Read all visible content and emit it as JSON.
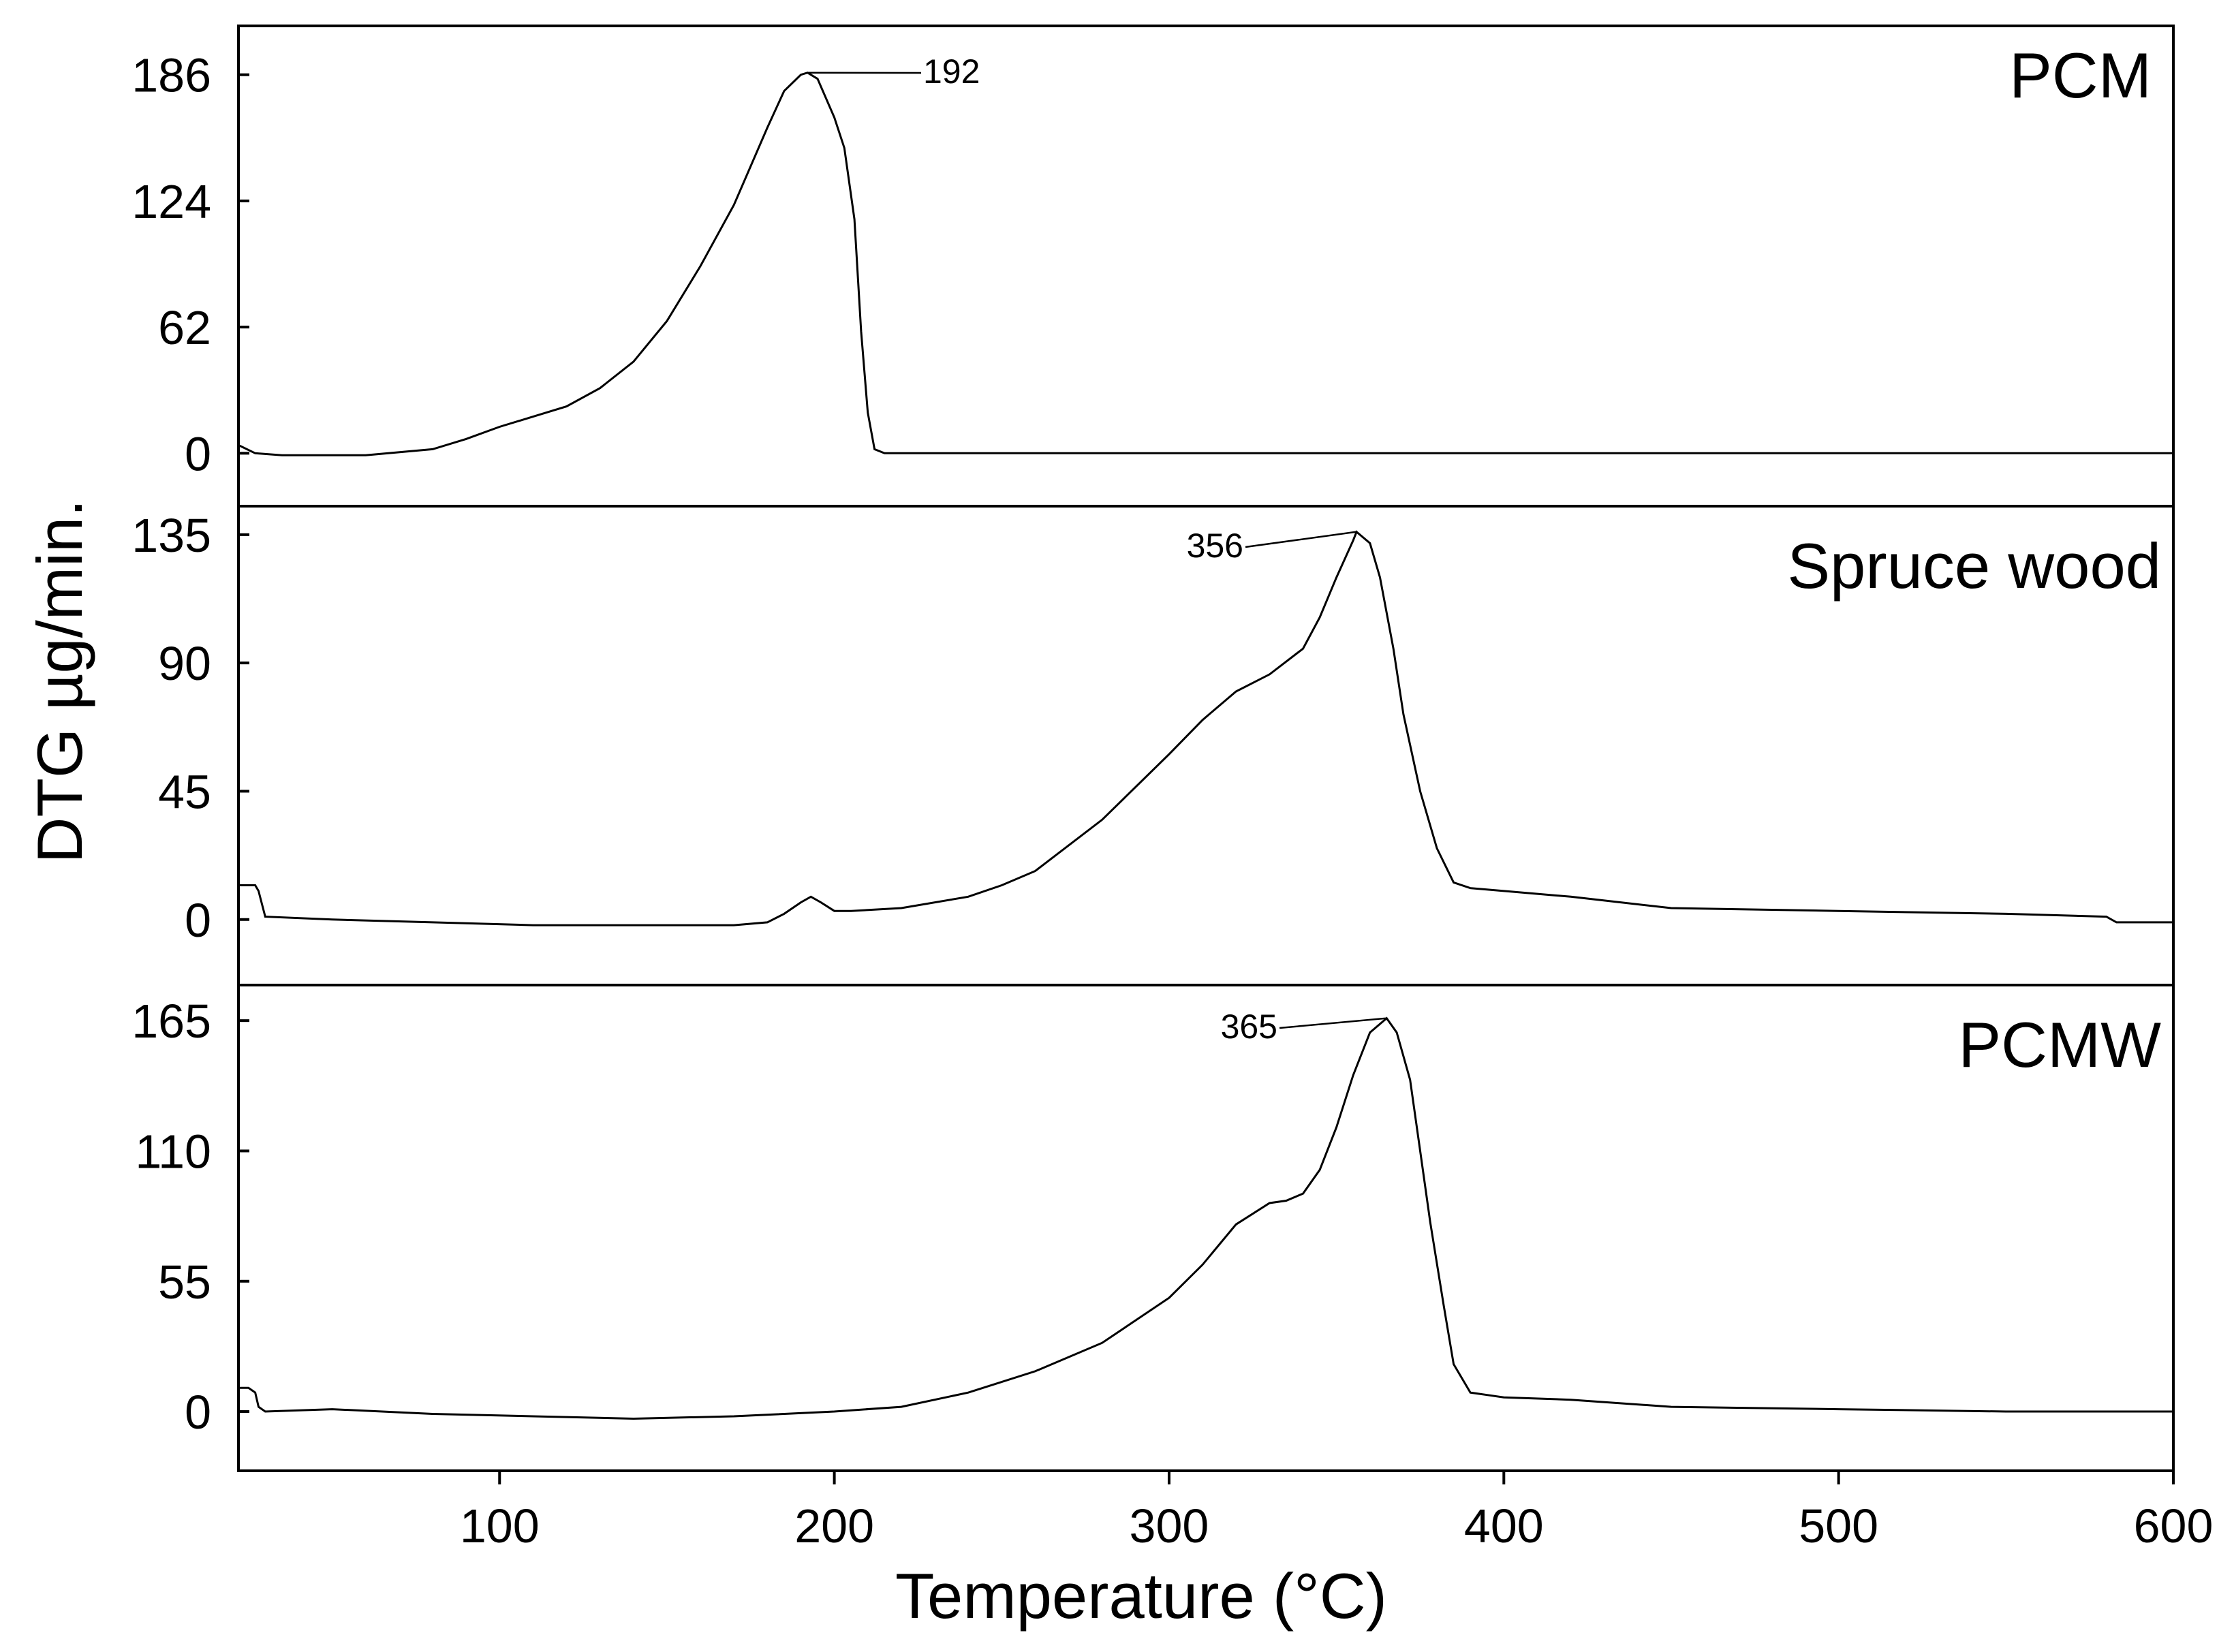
{
  "chart_data": {
    "type": "line",
    "xlabel": "Temperature (°C)",
    "ylabel": "DTG µg/min.",
    "xlim": [
      22,
      600
    ],
    "xticks": [
      100,
      200,
      300,
      400,
      500,
      600
    ],
    "line_color": "#000000",
    "panels": [
      {
        "label": "PCM",
        "ylim": [
          -26,
          210
        ],
        "yticks": [
          0,
          62,
          124,
          186
        ],
        "peak": {
          "x": 192,
          "y": 187,
          "label": "192"
        },
        "series": {
          "x": [
            22,
            27,
            35,
            60,
            80,
            90,
            100,
            110,
            120,
            130,
            140,
            150,
            160,
            170,
            180,
            185,
            190,
            192,
            195,
            200,
            203,
            206,
            208,
            210,
            212,
            215,
            600
          ],
          "y": [
            4,
            0,
            -1,
            -1,
            2,
            7,
            13,
            18,
            23,
            32,
            45,
            65,
            92,
            122,
            160,
            178,
            186,
            187,
            184,
            165,
            150,
            115,
            60,
            20,
            2,
            0,
            0
          ]
        }
      },
      {
        "label": "Spruce wood",
        "ylim": [
          -23,
          145
        ],
        "yticks": [
          0,
          45,
          90,
          135
        ],
        "peak": {
          "x": 356,
          "y": 136,
          "label": "356"
        },
        "series": {
          "x": [
            22,
            27,
            28,
            30,
            50,
            80,
            110,
            140,
            170,
            180,
            185,
            190,
            193,
            196,
            200,
            205,
            220,
            240,
            250,
            260,
            280,
            300,
            310,
            320,
            330,
            340,
            345,
            350,
            355,
            356,
            360,
            363,
            367,
            370,
            375,
            380,
            385,
            390,
            400,
            420,
            450,
            500,
            550,
            580,
            583,
            600
          ],
          "y": [
            12,
            12,
            10,
            1,
            0,
            -1,
            -2,
            -2,
            -2,
            -1,
            2,
            6,
            8,
            6,
            3,
            3,
            4,
            8,
            12,
            17,
            35,
            58,
            70,
            80,
            86,
            95,
            106,
            120,
            133,
            136,
            132,
            120,
            95,
            72,
            45,
            25,
            13,
            11,
            10,
            8,
            4,
            3,
            2,
            1,
            -1,
            -1
          ]
        }
      },
      {
        "label": "PCMW",
        "ylim": [
          -25,
          180
        ],
        "yticks": [
          0,
          55,
          110,
          165
        ],
        "peak": {
          "x": 365,
          "y": 166,
          "label": "365"
        },
        "series": {
          "x": [
            22,
            25,
            27,
            28,
            30,
            50,
            80,
            110,
            140,
            170,
            200,
            220,
            240,
            260,
            280,
            300,
            310,
            320,
            330,
            335,
            340,
            345,
            350,
            355,
            360,
            365,
            368,
            372,
            375,
            378,
            382,
            385,
            390,
            395,
            400,
            420,
            450,
            500,
            550,
            600
          ],
          "y": [
            10,
            10,
            8,
            2,
            0,
            1,
            -1,
            -2,
            -3,
            -2,
            0,
            2,
            8,
            17,
            29,
            48,
            62,
            79,
            88,
            89,
            92,
            102,
            120,
            142,
            160,
            166,
            160,
            140,
            110,
            80,
            45,
            20,
            8,
            7,
            6,
            5,
            2,
            1,
            0,
            0
          ]
        }
      }
    ]
  }
}
